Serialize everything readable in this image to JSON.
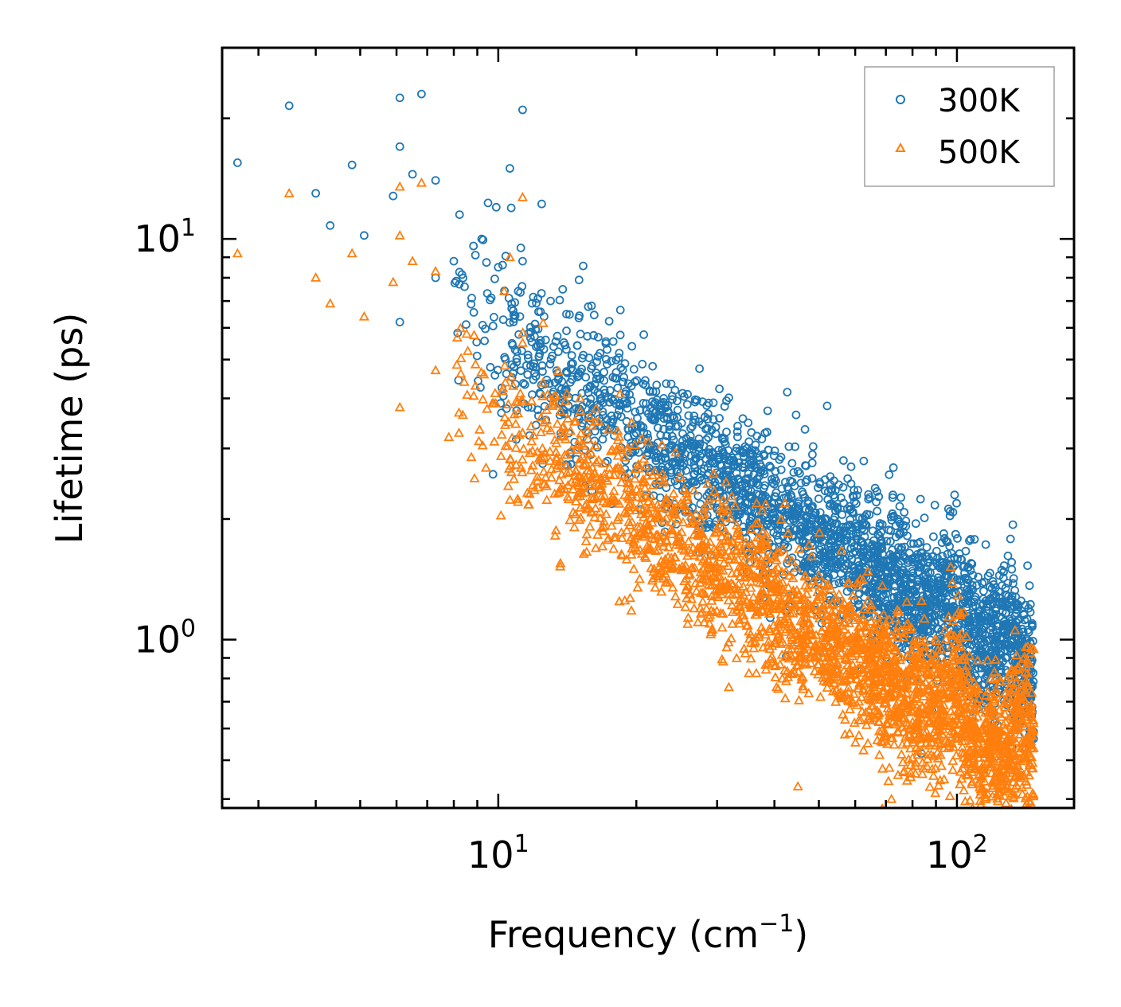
{
  "chart_data": {
    "type": "scatter",
    "title": "",
    "xlabel": "Frequency (cm",
    "xlabel_sup": "−1",
    "xlabel_suffix": ")",
    "ylabel": "Lifetime (ps)",
    "xscale": "log",
    "yscale": "log",
    "xlim": [
      2.5,
      180
    ],
    "ylim": [
      0.38,
      30
    ],
    "xticks": [
      {
        "value": 10,
        "base": "10",
        "exp": "1"
      },
      {
        "value": 100,
        "base": "10",
        "exp": "2"
      }
    ],
    "yticks": [
      {
        "value": 1,
        "base": "10",
        "exp": "0"
      },
      {
        "value": 10,
        "base": "10",
        "exp": "1"
      }
    ],
    "legend_position": "top-right",
    "series": [
      {
        "name": "300K",
        "marker": "circle",
        "color": "#1f77b4",
        "trend": {
          "amplitude": 30,
          "slope": -0.72,
          "spread": 0.09
        },
        "peaks": [
          {
            "x": 98,
            "y": 1.55
          },
          {
            "x": 58,
            "y": 1.95
          },
          {
            "x": 130,
            "y": 1.15
          },
          {
            "x": 18,
            "y": 4.3
          }
        ],
        "outliers": [
          {
            "x": 2.7,
            "y": 15.5
          },
          {
            "x": 3.5,
            "y": 21.5
          },
          {
            "x": 4.0,
            "y": 13.0
          },
          {
            "x": 4.3,
            "y": 10.8
          },
          {
            "x": 4.8,
            "y": 15.3
          },
          {
            "x": 5.1,
            "y": 10.2
          },
          {
            "x": 5.9,
            "y": 12.8
          },
          {
            "x": 6.1,
            "y": 17.0
          },
          {
            "x": 6.1,
            "y": 22.5
          },
          {
            "x": 6.1,
            "y": 6.2
          },
          {
            "x": 6.5,
            "y": 14.5
          },
          {
            "x": 6.8,
            "y": 23.0
          },
          {
            "x": 7.3,
            "y": 14.0
          },
          {
            "x": 7.3,
            "y": 8.0
          },
          {
            "x": 8.0,
            "y": 8.8
          },
          {
            "x": 9.2,
            "y": 10.0
          },
          {
            "x": 9.5,
            "y": 12.3
          },
          {
            "x": 9.9,
            "y": 12.0
          },
          {
            "x": 10.0,
            "y": 8.5
          },
          {
            "x": 10.6,
            "y": 15.0
          },
          {
            "x": 11.2,
            "y": 9.5
          },
          {
            "x": 11.3,
            "y": 21.0
          },
          {
            "x": 11.3,
            "y": 8.8
          },
          {
            "x": 12.2,
            "y": 7.1
          },
          {
            "x": 13.0,
            "y": 7.0
          },
          {
            "x": 15.0,
            "y": 7.9
          }
        ]
      },
      {
        "name": "500K",
        "marker": "triangle",
        "color": "#ff7f0e",
        "trend": {
          "amplitude": 20,
          "slope": -0.76,
          "spread": 0.09
        },
        "peaks": [
          {
            "x": 98,
            "y": 0.95
          },
          {
            "x": 42,
            "y": 1.15
          },
          {
            "x": 140,
            "y": 0.78
          },
          {
            "x": 18,
            "y": 2.6
          }
        ],
        "outliers": [
          {
            "x": 2.7,
            "y": 9.2
          },
          {
            "x": 3.5,
            "y": 13.0
          },
          {
            "x": 4.0,
            "y": 8.0
          },
          {
            "x": 4.3,
            "y": 6.9
          },
          {
            "x": 4.8,
            "y": 9.2
          },
          {
            "x": 5.1,
            "y": 6.4
          },
          {
            "x": 5.9,
            "y": 7.8
          },
          {
            "x": 6.1,
            "y": 10.2
          },
          {
            "x": 6.1,
            "y": 13.5
          },
          {
            "x": 6.1,
            "y": 3.8
          },
          {
            "x": 6.5,
            "y": 8.8
          },
          {
            "x": 6.8,
            "y": 13.8
          },
          {
            "x": 7.3,
            "y": 8.3
          },
          {
            "x": 7.3,
            "y": 4.7
          },
          {
            "x": 7.8,
            "y": 3.2
          },
          {
            "x": 10.6,
            "y": 9.0
          },
          {
            "x": 11.3,
            "y": 12.7
          },
          {
            "x": 11.3,
            "y": 5.5
          },
          {
            "x": 10.3,
            "y": 7.4
          },
          {
            "x": 45,
            "y": 0.43
          },
          {
            "x": 72,
            "y": 0.4
          }
        ]
      }
    ]
  }
}
